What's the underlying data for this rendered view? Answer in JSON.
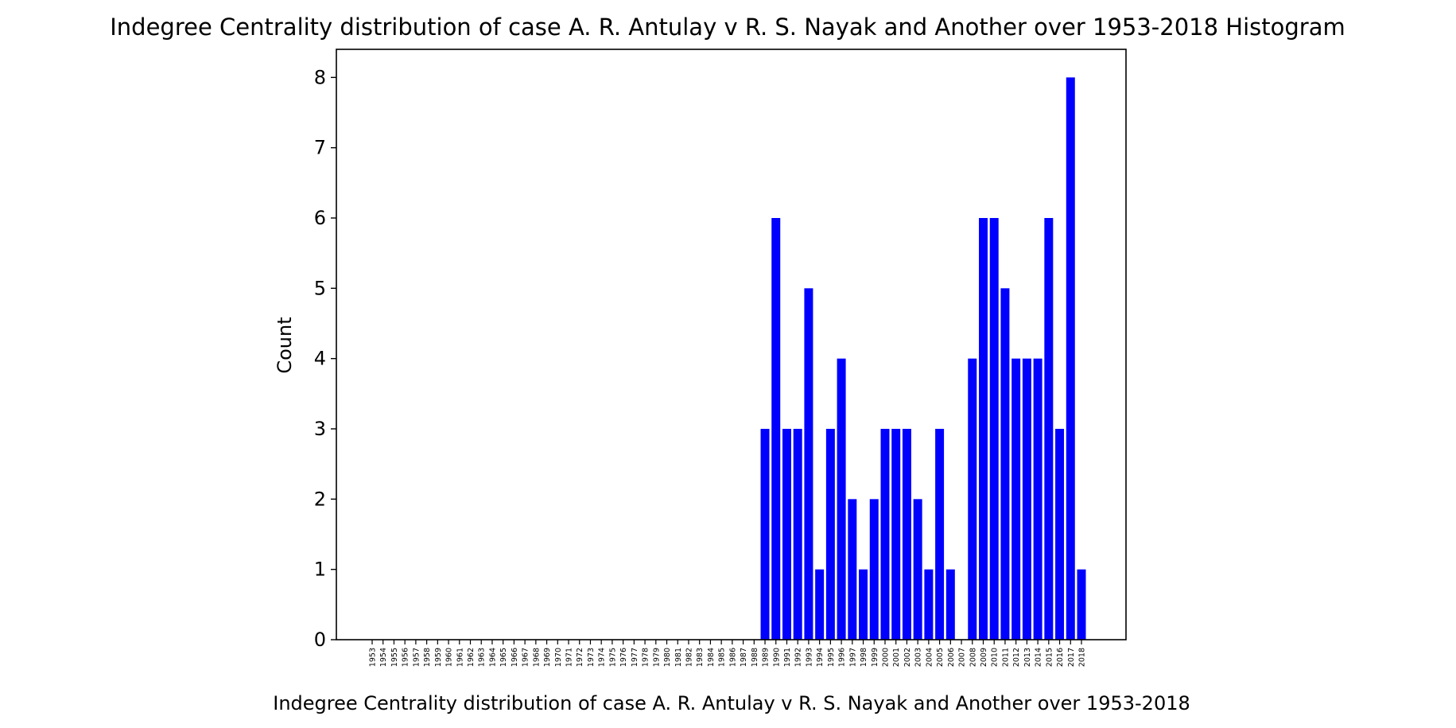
{
  "chart_data": {
    "type": "bar",
    "title": "Indegree Centrality distribution of case A. R. Antulay v R. S. Nayak and Another over 1953-2018 Histogram",
    "xlabel": "Indegree Centrality distribution of case A. R. Antulay v R. S. Nayak and Another over 1953-2018",
    "ylabel": "Count",
    "ylim": [
      0,
      8.4
    ],
    "yticks": [
      "0",
      "1",
      "2",
      "3",
      "4",
      "5",
      "6",
      "7",
      "8"
    ],
    "grid": false,
    "bar_color": "#0000ff",
    "categories": [
      "1953",
      "1954",
      "1955",
      "1956",
      "1957",
      "1958",
      "1959",
      "1960",
      "1961",
      "1962",
      "1963",
      "1964",
      "1965",
      "1966",
      "1967",
      "1968",
      "1969",
      "1970",
      "1971",
      "1972",
      "1973",
      "1974",
      "1975",
      "1976",
      "1977",
      "1978",
      "1979",
      "1980",
      "1981",
      "1982",
      "1983",
      "1984",
      "1985",
      "1986",
      "1987",
      "1988",
      "1989",
      "1990",
      "1991",
      "1992",
      "1993",
      "1994",
      "1995",
      "1996",
      "1997",
      "1998",
      "1999",
      "2000",
      "2001",
      "2002",
      "2003",
      "2004",
      "2005",
      "2006",
      "2007",
      "2008",
      "2009",
      "2010",
      "2011",
      "2012",
      "2013",
      "2014",
      "2015",
      "2016",
      "2017",
      "2018"
    ],
    "values": [
      0,
      0,
      0,
      0,
      0,
      0,
      0,
      0,
      0,
      0,
      0,
      0,
      0,
      0,
      0,
      0,
      0,
      0,
      0,
      0,
      0,
      0,
      0,
      0,
      0,
      0,
      0,
      0,
      0,
      0,
      0,
      0,
      0,
      0,
      0,
      0,
      3,
      6,
      3,
      3,
      5,
      1,
      3,
      4,
      2,
      1,
      2,
      3,
      3,
      3,
      2,
      1,
      3,
      1,
      0,
      4,
      6,
      6,
      5,
      4,
      4,
      4,
      6,
      3,
      8,
      1
    ]
  }
}
